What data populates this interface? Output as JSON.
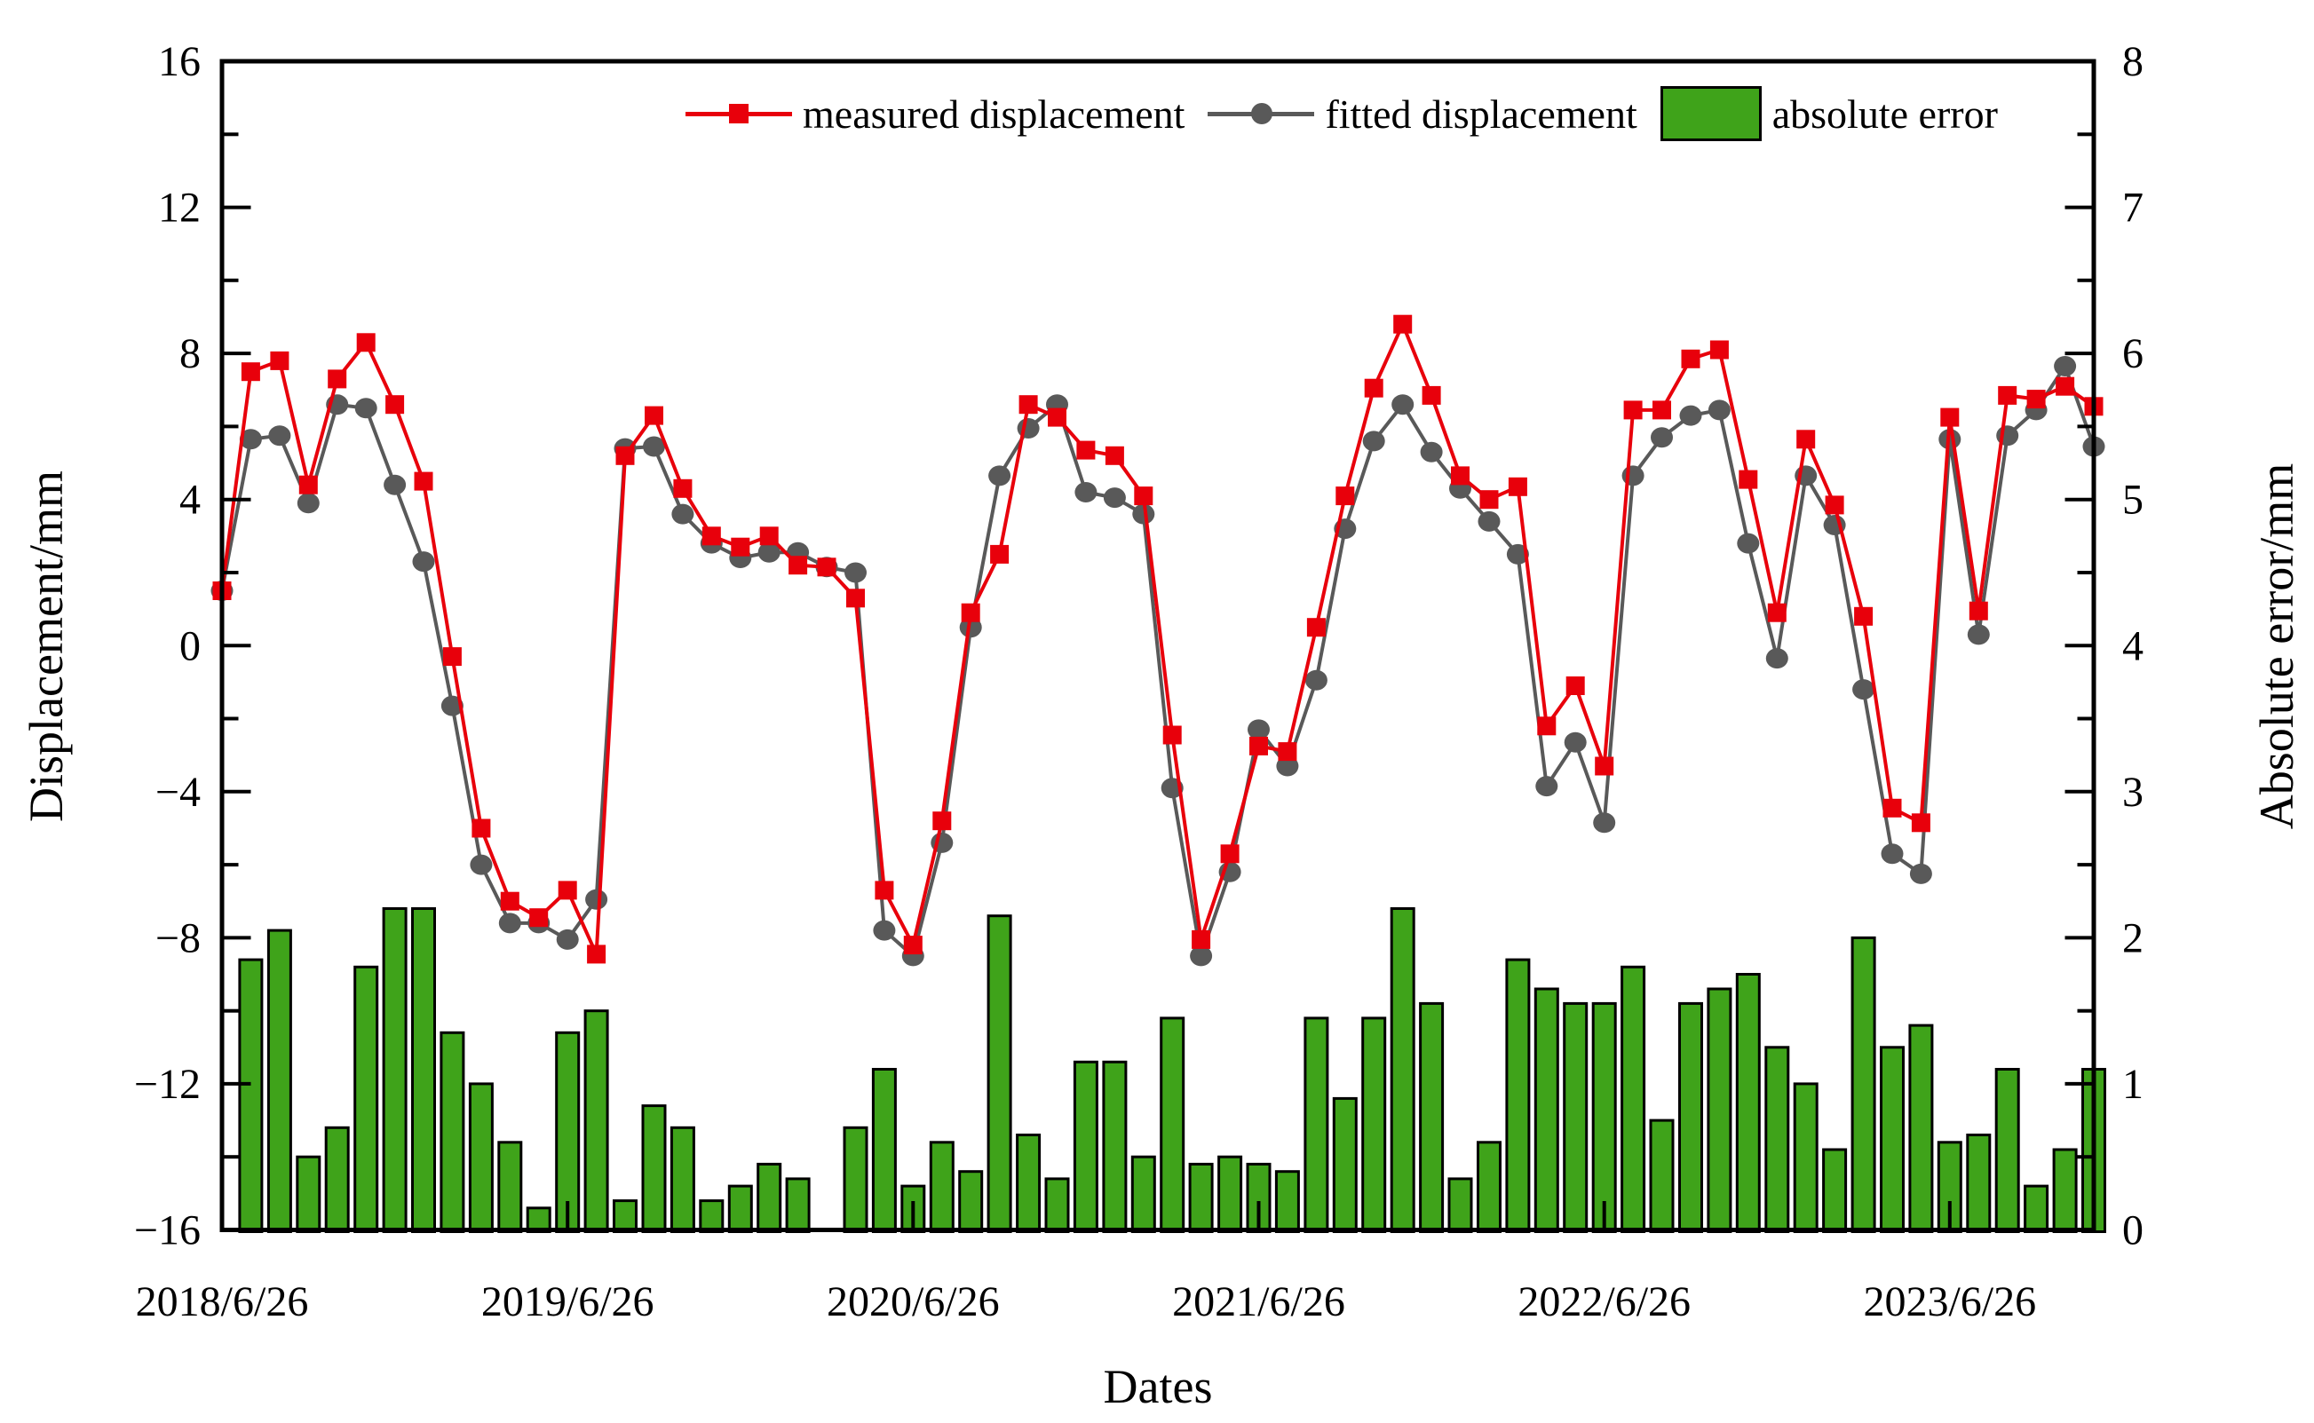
{
  "legend": {
    "measured": "measured displacement",
    "fitted": "fitted displacement",
    "error": "absolute error"
  },
  "axes": {
    "left_title": "Displacement/mm",
    "right_title": "Absolute error/mm",
    "x_title": "Dates"
  },
  "colors": {
    "measured": "#e8000b",
    "fitted": "#595959",
    "error_fill": "#3fa31a",
    "error_border": "#000000",
    "frame": "#000000"
  },
  "chart_data": {
    "type": "line+bar",
    "x": {
      "dates": [
        "2018/6/26",
        "2018/7/26",
        "2018/8/26",
        "2018/9/26",
        "2018/10/26",
        "2018/11/26",
        "2018/12/26",
        "2019/1/26",
        "2019/2/26",
        "2019/3/26",
        "2019/4/26",
        "2019/5/26",
        "2019/6/26",
        "2019/7/26",
        "2019/8/26",
        "2019/9/26",
        "2019/10/26",
        "2019/11/26",
        "2019/12/26",
        "2020/1/26",
        "2020/2/26",
        "2020/3/26",
        "2020/4/26",
        "2020/5/26",
        "2020/6/26",
        "2020/7/26",
        "2020/8/26",
        "2020/9/26",
        "2020/10/26",
        "2020/11/26",
        "2020/12/26",
        "2021/1/26",
        "2021/2/26",
        "2021/3/26",
        "2021/4/26",
        "2021/5/26",
        "2021/6/26",
        "2021/7/26",
        "2021/8/26",
        "2021/9/26",
        "2021/10/26",
        "2021/11/26",
        "2021/12/26",
        "2022/1/26",
        "2022/2/26",
        "2022/3/26",
        "2022/4/26",
        "2022/5/26",
        "2022/6/26",
        "2022/7/26",
        "2022/8/26",
        "2022/9/26",
        "2022/10/26",
        "2022/11/26",
        "2022/12/26",
        "2023/1/26",
        "2023/2/26",
        "2023/3/26",
        "2023/4/26",
        "2023/5/26",
        "2023/6/26",
        "2023/7/26",
        "2023/8/26",
        "2023/9/26",
        "2023/10/26",
        "2023/11/26"
      ],
      "tick_indices": [
        0,
        12,
        24,
        36,
        48,
        60
      ],
      "tick_labels": [
        "2018/6/26",
        "2019/6/26",
        "2020/6/26",
        "2021/6/26",
        "2022/6/26",
        "2023/6/26"
      ]
    },
    "left_axis": {
      "range": [
        -16,
        16
      ],
      "major_step": 4,
      "minor_step": 2,
      "tick_values": [
        16,
        12,
        8,
        4,
        0,
        -4,
        -8,
        -12,
        -16
      ],
      "tick_labels": [
        "16",
        "12",
        "8",
        "4",
        "0",
        "−4",
        "−8",
        "−12",
        "−16"
      ]
    },
    "right_axis": {
      "range": [
        0,
        8
      ],
      "major_step": 1,
      "minor_step": 0.5,
      "tick_values": [
        8,
        7,
        6,
        5,
        4,
        3,
        2,
        1,
        0
      ],
      "tick_labels": [
        "8",
        "7",
        "6",
        "5",
        "4",
        "3",
        "2",
        "1",
        "0"
      ]
    },
    "series": [
      {
        "name": "measured displacement",
        "type": "line",
        "marker": "square",
        "axis": "left",
        "values": [
          1.5,
          7.5,
          7.8,
          4.4,
          7.3,
          8.3,
          6.6,
          4.5,
          -0.3,
          -5.0,
          -7.0,
          -7.45,
          -6.7,
          -8.45,
          5.2,
          6.3,
          4.3,
          3.0,
          2.7,
          3.0,
          2.2,
          2.15,
          1.3,
          -6.7,
          -8.2,
          -4.8,
          0.9,
          2.5,
          6.6,
          6.25,
          5.35,
          5.2,
          4.1,
          -2.45,
          -8.05,
          -5.7,
          -2.75,
          -2.9,
          0.5,
          4.1,
          7.05,
          8.8,
          6.85,
          4.65,
          4.0,
          4.35,
          -2.2,
          -1.1,
          -3.3,
          6.45,
          6.45,
          7.85,
          8.1,
          4.55,
          0.9,
          5.65,
          3.85,
          0.8,
          -4.45,
          -4.85,
          6.25,
          0.95,
          6.85,
          6.75,
          7.1,
          6.55
        ]
      },
      {
        "name": "fitted displacement",
        "type": "line",
        "marker": "circle",
        "axis": "left",
        "values": [
          1.5,
          5.65,
          5.75,
          3.9,
          6.6,
          6.5,
          4.4,
          2.3,
          -1.65,
          -6.0,
          -7.6,
          -7.6,
          -8.05,
          -6.95,
          5.4,
          5.45,
          3.6,
          2.8,
          2.4,
          2.55,
          2.55,
          2.15,
          2.0,
          -7.8,
          -8.5,
          -5.4,
          0.5,
          4.65,
          5.95,
          6.6,
          4.2,
          4.05,
          3.6,
          -3.9,
          -8.5,
          -6.2,
          -2.3,
          -3.3,
          -0.95,
          3.2,
          5.6,
          6.6,
          5.3,
          4.3,
          3.4,
          2.5,
          -3.85,
          -2.65,
          -4.85,
          4.65,
          5.7,
          6.3,
          6.45,
          2.8,
          -0.35,
          4.65,
          3.3,
          -1.2,
          -5.7,
          -6.25,
          5.65,
          0.3,
          5.75,
          6.45,
          7.65,
          5.45
        ]
      },
      {
        "name": "absolute error",
        "type": "bar",
        "axis": "right",
        "values": [
          0,
          1.85,
          2.05,
          0.5,
          0.7,
          1.8,
          2.2,
          2.2,
          1.35,
          1.0,
          0.6,
          0.15,
          1.35,
          1.5,
          0.2,
          0.85,
          0.7,
          0.2,
          0.3,
          0.45,
          0.35,
          0.0,
          0.7,
          1.1,
          0.3,
          0.6,
          0.4,
          2.15,
          0.65,
          0.35,
          1.15,
          1.15,
          0.5,
          1.45,
          0.45,
          0.5,
          0.45,
          0.4,
          1.45,
          0.9,
          1.45,
          2.2,
          1.55,
          0.35,
          0.6,
          1.85,
          1.65,
          1.55,
          1.55,
          1.8,
          0.75,
          1.55,
          1.65,
          1.75,
          1.25,
          1.0,
          0.55,
          2.0,
          1.25,
          1.4,
          0.6,
          0.65,
          1.1,
          0.3,
          0.55,
          1.1
        ]
      }
    ]
  }
}
